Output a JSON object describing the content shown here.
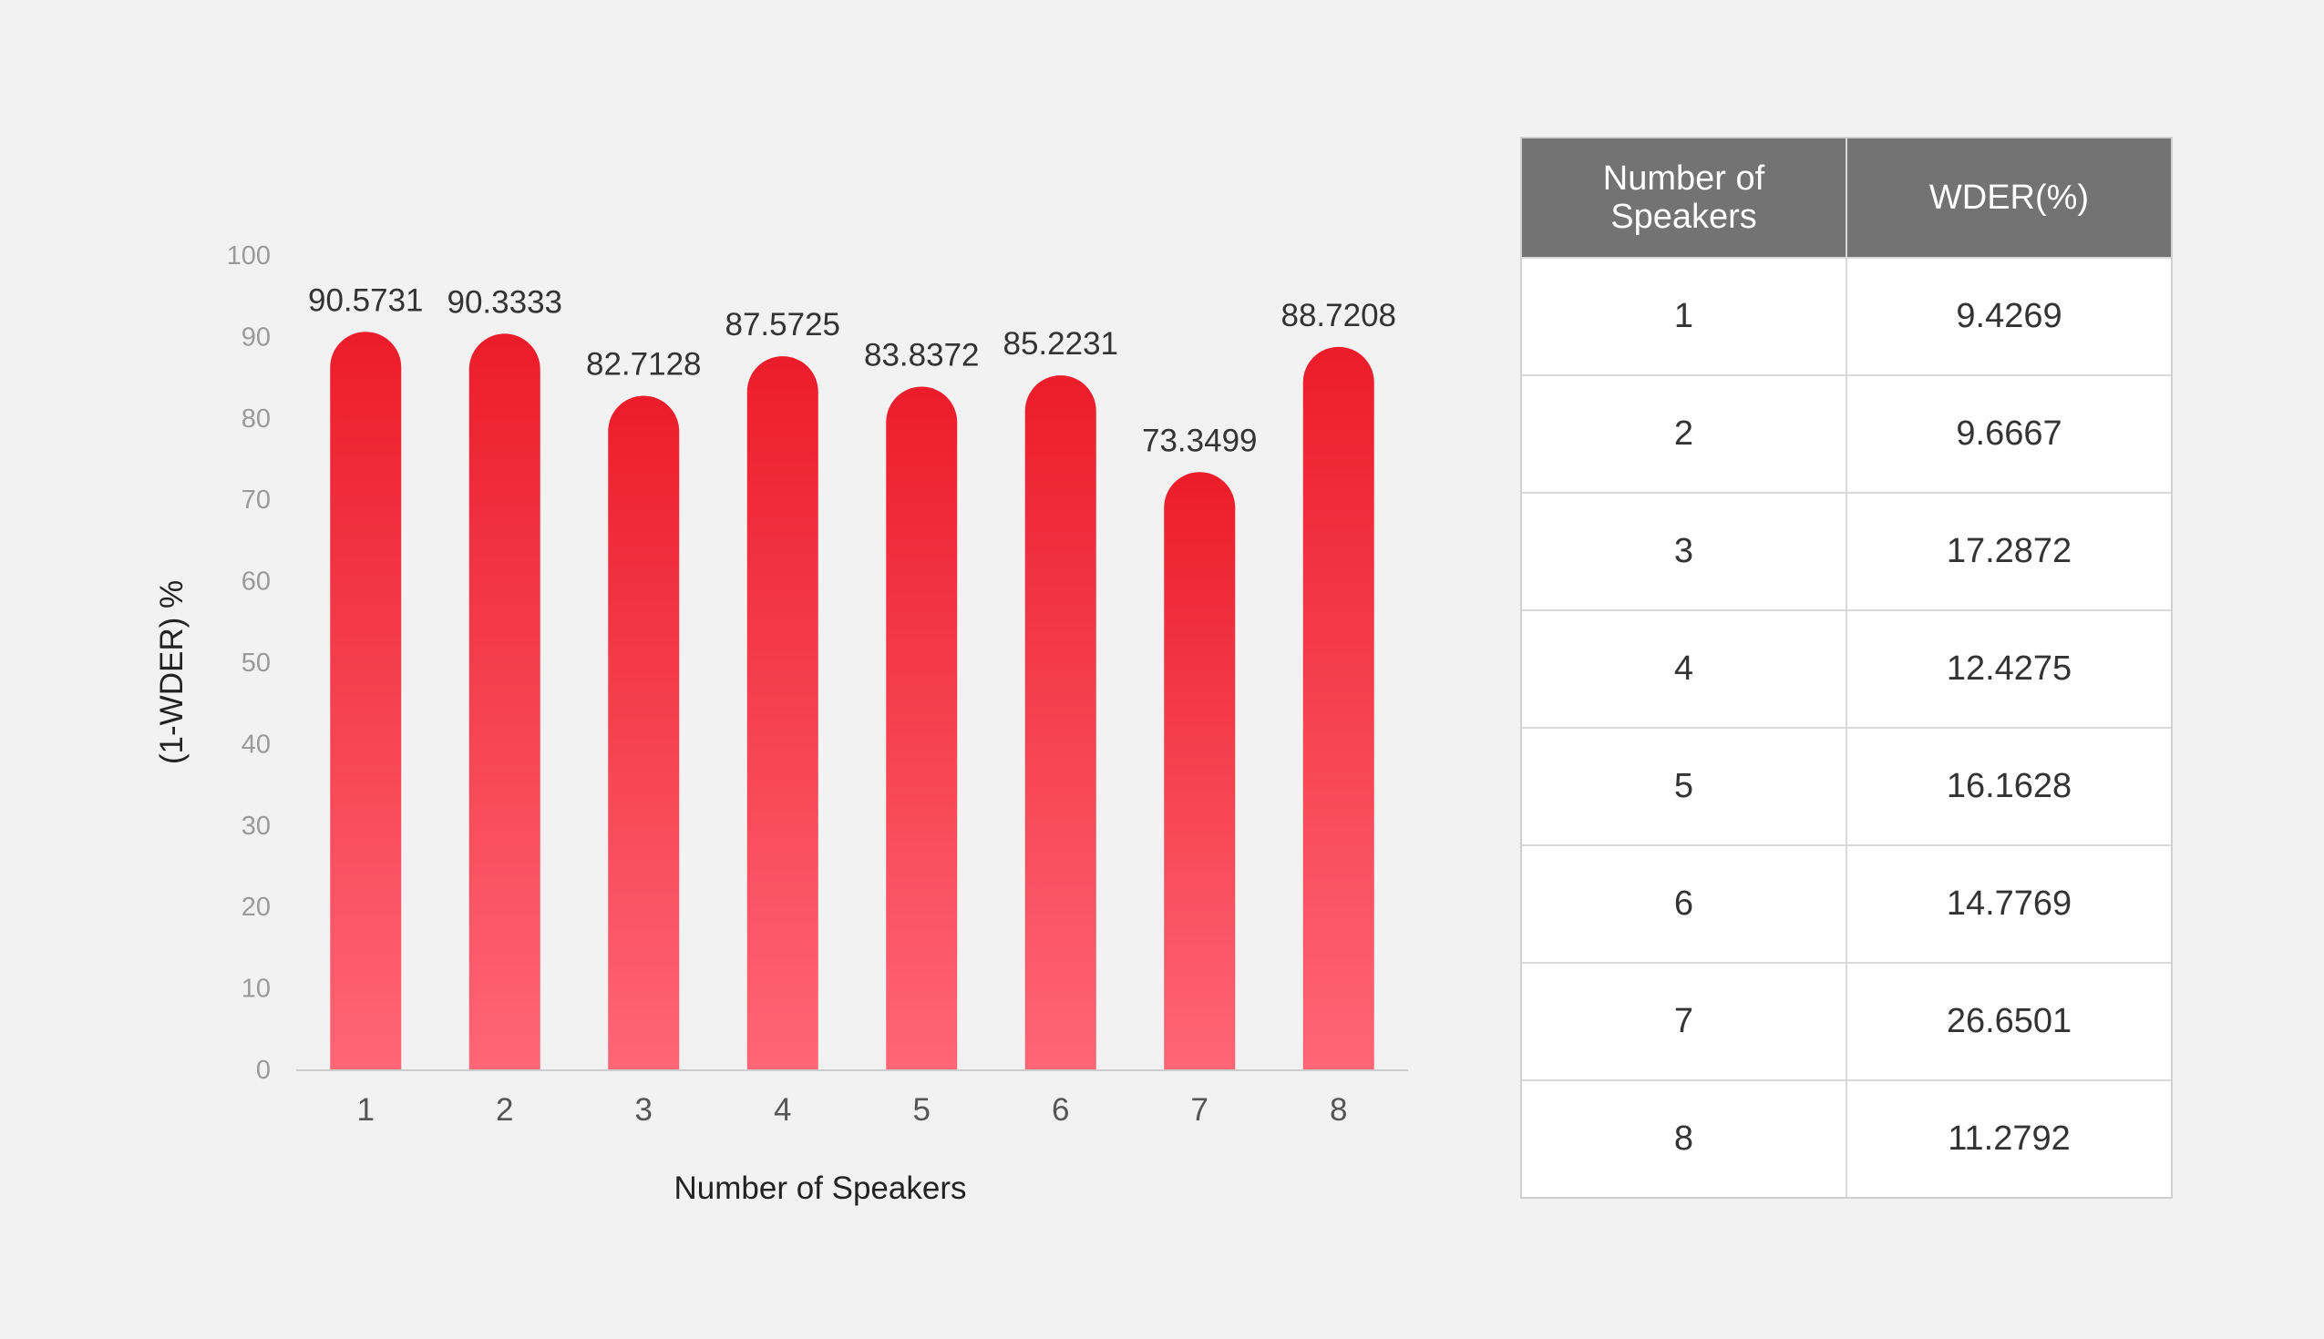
{
  "chart_data": {
    "type": "bar",
    "title": "",
    "xlabel": "Number of Speakers",
    "ylabel": "(1-WDER) %",
    "ylim": [
      0,
      100
    ],
    "yticks": [
      0,
      10,
      20,
      30,
      40,
      50,
      60,
      70,
      80,
      90,
      100
    ],
    "categories": [
      "1",
      "2",
      "3",
      "4",
      "5",
      "6",
      "7",
      "8"
    ],
    "values": [
      90.5731,
      90.3333,
      82.7128,
      87.5725,
      83.8372,
      85.2231,
      73.3499,
      88.7208
    ],
    "value_labels": [
      "90.5731",
      "90.3333",
      "82.7128",
      "87.5725",
      "83.8372",
      "85.2231",
      "73.3499",
      "88.7208"
    ],
    "grid": false,
    "legend": "none",
    "colors": {
      "bar_top": "#ec1c2a",
      "bar_bottom": "#ff6676",
      "axis": "#cccccc"
    }
  },
  "table": {
    "headers": [
      "Number of Speakers",
      "WDER(%)"
    ],
    "rows": [
      [
        "1",
        "9.4269"
      ],
      [
        "2",
        "9.6667"
      ],
      [
        "3",
        "17.2872"
      ],
      [
        "4",
        "12.4275"
      ],
      [
        "5",
        "16.1628"
      ],
      [
        "6",
        "14.7769"
      ],
      [
        "7",
        "26.6501"
      ],
      [
        "8",
        "11.2792"
      ]
    ],
    "header_color": "#737373"
  }
}
